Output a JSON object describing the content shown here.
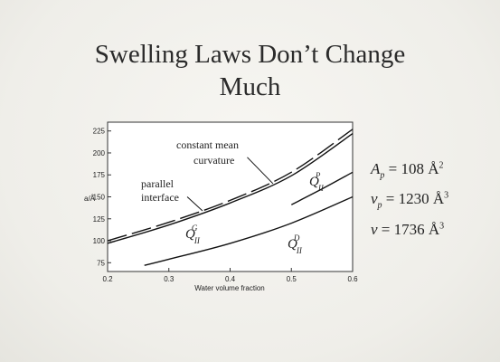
{
  "slide": {
    "title_line1": "Swelling Laws Don’t Change",
    "title_line2": "Much"
  },
  "chart_data": {
    "type": "line",
    "xlabel": "Water volume fraction",
    "ylabel": "a/Å",
    "xlim": [
      0.2,
      0.6
    ],
    "ylim": [
      65,
      235
    ],
    "xticks": [
      0.2,
      0.3,
      0.4,
      0.5,
      0.6
    ],
    "xtick_labels": [
      "0.2",
      "0.3",
      "0.4",
      "0.5",
      "0.6"
    ],
    "yticks": [
      75,
      100,
      125,
      150,
      175,
      200,
      225
    ],
    "ytick_labels": [
      "75",
      "100",
      "125",
      "150",
      "175",
      "200",
      "225"
    ],
    "grid": false,
    "series": [
      {
        "id": "parallel-interface",
        "style": "solid",
        "x": [
          0.2,
          0.3,
          0.4,
          0.5,
          0.6
        ],
        "y": [
          97,
          118,
          143,
          174,
          222
        ]
      },
      {
        "id": "constant-mean-curvature",
        "style": "dashed",
        "x": [
          0.2,
          0.3,
          0.4,
          0.5,
          0.6
        ],
        "y": [
          100,
          121,
          146,
          178,
          227
        ]
      },
      {
        "id": "QII-P",
        "style": "solid",
        "x": [
          0.5,
          0.55,
          0.6
        ],
        "y": [
          141,
          159,
          178
        ]
      },
      {
        "id": "QII-D",
        "style": "solid",
        "x": [
          0.26,
          0.3,
          0.4,
          0.5,
          0.6
        ],
        "y": [
          72,
          79,
          97,
          120,
          150
        ]
      }
    ],
    "annotations": [
      {
        "id": "constant-mean-curvature",
        "lines": [
          "constant mean",
          "curvature"
        ]
      },
      {
        "id": "parallel-interface",
        "lines": [
          "parallel",
          "interface"
        ]
      }
    ],
    "phase_labels": [
      {
        "id": "QII-G",
        "base": "Q",
        "sub": "II",
        "sup": "G"
      },
      {
        "id": "QII-P",
        "base": "Q",
        "sub": "II",
        "sup": "P"
      },
      {
        "id": "QII-D",
        "base": "Q",
        "sub": "II",
        "sup": "D"
      }
    ]
  },
  "equations": [
    {
      "var": "A",
      "sub": "p",
      "rhs": "= 108 Å",
      "sup": "2"
    },
    {
      "var": "v",
      "sub": "p",
      "rhs": "= 1230 Å",
      "sup": "3"
    },
    {
      "var": "v",
      "sub": "",
      "rhs": "= 1736 Å",
      "sup": "3"
    }
  ]
}
